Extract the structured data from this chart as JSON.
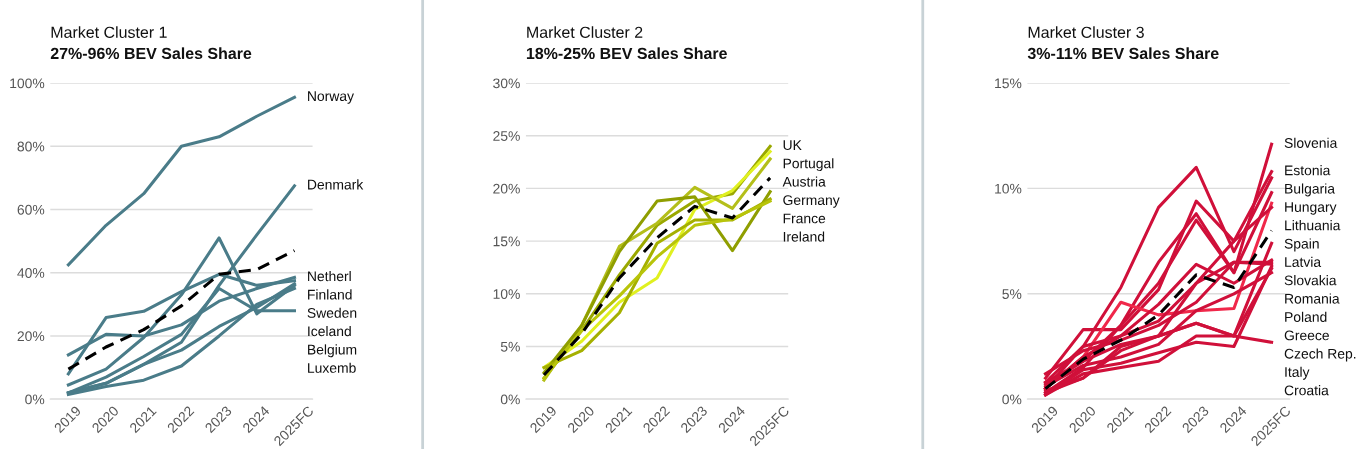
{
  "chart_data": [
    {
      "type": "line",
      "title": "Market Cluster 1",
      "subtitle": "27%-96% BEV Sales Share",
      "categories": [
        "2019",
        "2020",
        "2021",
        "2022",
        "2023",
        "2024",
        "2025FC"
      ],
      "ylim": [
        0,
        100
      ],
      "yticks": [
        {
          "value": 0,
          "label": "0%"
        },
        {
          "value": 20,
          "label": "20%"
        },
        {
          "value": 40,
          "label": "40%"
        },
        {
          "value": 60,
          "label": "60%"
        },
        {
          "value": 80,
          "label": "80%"
        },
        {
          "value": 100,
          "label": "100%"
        }
      ],
      "grid": "y",
      "legend": false,
      "marker": "none",
      "series": [
        {
          "name": "Norway",
          "color": "#4a7c89",
          "values": [
            42.5,
            55,
            65,
            80,
            83,
            89.5,
            95.5
          ]
        },
        {
          "name": "Denmark",
          "color": "#4a7c89",
          "values": [
            2,
            5,
            11,
            18,
            36,
            52,
            67.5
          ]
        },
        {
          "name": "Netherl",
          "color": "#4a7c89",
          "values": [
            14,
            20.5,
            20,
            23.5,
            31,
            35,
            38.5
          ]
        },
        {
          "name": "Finland",
          "color": "#4a7c89",
          "values": [
            8,
            25.8,
            27.8,
            34,
            39.5,
            36,
            37.5
          ]
        },
        {
          "name": "Sweden",
          "color": "#4a7c89",
          "values": [
            2,
            5,
            11,
            15.5,
            23,
            29,
            36.5
          ]
        },
        {
          "name": "Iceland",
          "color": "#4a7c89",
          "values": [
            4.5,
            9.5,
            19.5,
            33,
            51,
            27,
            36
          ]
        },
        {
          "name": "Belgium",
          "color": "#4a7c89",
          "values": [
            1.5,
            4,
            6,
            10.5,
            20,
            30,
            35
          ]
        },
        {
          "name": "Luxemb",
          "color": "#4a7c89",
          "values": [
            2,
            7,
            13.5,
            20.5,
            35,
            28,
            28
          ]
        },
        {
          "color": "#000000",
          "line_style": "dashed",
          "values": [
            9.5,
            16.5,
            22,
            29.5,
            39.5,
            41,
            47
          ]
        }
      ]
    },
    {
      "type": "line",
      "title": "Market Cluster 2",
      "subtitle": "18%-25% BEV Sales Share",
      "categories": [
        "2019",
        "2020",
        "2021",
        "2022",
        "2023",
        "2024",
        "2025FC"
      ],
      "ylim": [
        0,
        30
      ],
      "yticks": [
        {
          "value": 0,
          "label": "0%"
        },
        {
          "value": 5,
          "label": "5%"
        },
        {
          "value": 10,
          "label": "10%"
        },
        {
          "value": 15,
          "label": "15%"
        },
        {
          "value": 20,
          "label": "20%"
        },
        {
          "value": 25,
          "label": "25%"
        },
        {
          "value": 30,
          "label": "30%"
        }
      ],
      "grid": "y",
      "legend": false,
      "marker": "none",
      "series": [
        {
          "name": "UK",
          "color": "#9aa800",
          "values": [
            2.0,
            6.5,
            11.8,
            16.5,
            18.8,
            19.5,
            24.0
          ]
        },
        {
          "name": "Portugal",
          "color": "#e0f020",
          "values": [
            3.0,
            5.5,
            9.2,
            11.5,
            18.0,
            19.8,
            23.5
          ]
        },
        {
          "name": "Austria",
          "color": "#b4bf1a",
          "values": [
            1.8,
            7.0,
            14.5,
            16.7,
            20.1,
            18.1,
            22.8
          ]
        },
        {
          "name": "Germany",
          "color": "#8f9e00",
          "values": [
            2.5,
            7.0,
            14.0,
            18.8,
            19.2,
            14.1,
            19.7
          ]
        },
        {
          "name": "France",
          "color": "#a5b000",
          "values": [
            3.0,
            4.6,
            8.2,
            14.8,
            17.0,
            17.0,
            19.0
          ]
        },
        {
          "name": "Ireland",
          "color": "#b8c40a",
          "values": [
            2.0,
            6.5,
            9.8,
            13.5,
            16.5,
            17.1,
            18.8
          ]
        },
        {
          "color": "#000000",
          "line_style": "dashed",
          "values": [
            2.3,
            6.2,
            11.5,
            15.3,
            18.3,
            17.2,
            21.0
          ]
        }
      ]
    },
    {
      "type": "line",
      "title": "Market Cluster 3",
      "subtitle": "3%-11% BEV Sales Share",
      "categories": [
        "2019",
        "2020",
        "2021",
        "2022",
        "2023",
        "2024",
        "2025FC"
      ],
      "ylim": [
        0,
        15
      ],
      "yticks": [
        {
          "value": 0,
          "label": "0%"
        },
        {
          "value": 5,
          "label": "5%"
        },
        {
          "value": 10,
          "label": "10%"
        },
        {
          "value": 15,
          "label": "15%"
        }
      ],
      "grid": "y",
      "legend": false,
      "marker": "none",
      "series": [
        {
          "name": "Slovenia",
          "color": "#d0103a",
          "values": [
            0.8,
            1.8,
            3.5,
            6.5,
            8.8,
            6.0,
            12.1
          ]
        },
        {
          "name": "Estonia",
          "color": "#d0103a",
          "values": [
            1.0,
            3.3,
            3.3,
            5.2,
            9.4,
            7.5,
            10.8
          ]
        },
        {
          "name": "Bulgaria",
          "color": "#d0103a",
          "values": [
            0.5,
            2.5,
            5.3,
            9.1,
            11.0,
            7.0,
            10.5
          ]
        },
        {
          "name": "Hungary",
          "color": "#d0103a",
          "values": [
            0.3,
            1.5,
            3.5,
            5.5,
            8.5,
            6.0,
            9.8
          ]
        },
        {
          "name": "Lithuania",
          "color": "#f0284a",
          "values": [
            0.5,
            2.0,
            4.6,
            4.0,
            4.2,
            4.3,
            9.3
          ]
        },
        {
          "name": "Spain",
          "color": "#d0103a",
          "values": [
            0.3,
            1.0,
            2.3,
            3.0,
            5.5,
            7.5,
            9.1
          ]
        },
        {
          "name": "Latvia",
          "color": "#d0103a",
          "values": [
            0.2,
            1.2,
            1.5,
            1.8,
            3.0,
            3.0,
            7.4
          ]
        },
        {
          "name": "Slovakia",
          "color": "#d0103a",
          "values": [
            0.5,
            2.0,
            3.0,
            4.5,
            6.4,
            5.5,
            6.6
          ]
        },
        {
          "name": "Romania",
          "color": "#d0103a",
          "values": [
            0.8,
            2.5,
            3.0,
            3.7,
            5.5,
            6.5,
            6.5
          ]
        },
        {
          "name": "Poland",
          "color": "#d0103a",
          "values": [
            1.2,
            2.3,
            2.8,
            3.5,
            4.6,
            6.5,
            6.4
          ]
        },
        {
          "name": "Greece",
          "color": "#d0103a",
          "values": [
            0.2,
            1.4,
            1.7,
            2.2,
            2.7,
            2.5,
            6.3
          ]
        },
        {
          "name": "Czech Rep.",
          "color": "#d0103a",
          "values": [
            0.4,
            1.0,
            2.5,
            3.0,
            3.6,
            3.0,
            6.2
          ]
        },
        {
          "name": "Italy",
          "color": "#d0103a",
          "values": [
            0.6,
            1.6,
            2.0,
            2.6,
            4.2,
            5.0,
            6.0
          ]
        },
        {
          "name": "Croatia",
          "color": "#d0103a",
          "values": [
            0.7,
            1.8,
            2.6,
            3.0,
            3.6,
            3.0,
            2.7
          ]
        },
        {
          "color": "#000000",
          "line_style": "dashed",
          "values": [
            0.5,
            1.9,
            2.8,
            4.0,
            5.9,
            5.3,
            8.0
          ]
        }
      ]
    }
  ]
}
